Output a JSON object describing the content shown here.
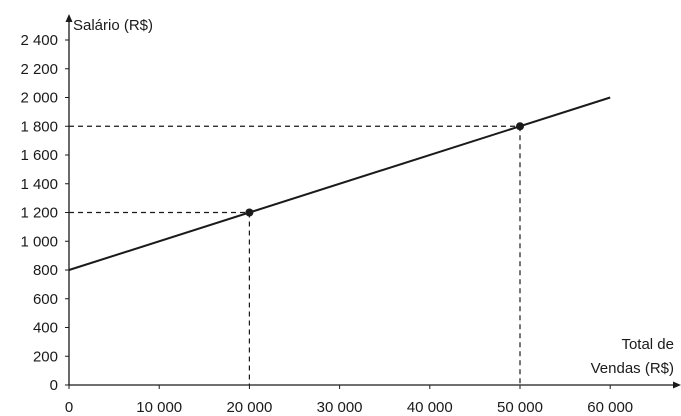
{
  "chart_data": {
    "type": "line",
    "title": "",
    "ylabel": "Salário (R$)",
    "xlabel_lines": [
      "Total de",
      "Vendas (R$)"
    ],
    "xlim": [
      0,
      68000
    ],
    "ylim": [
      0,
      2500
    ],
    "x_ticks": [
      0,
      10000,
      20000,
      30000,
      40000,
      50000,
      60000
    ],
    "x_tick_labels": [
      "0",
      "10 000",
      "20 000",
      "30 000",
      "40 000",
      "50 000",
      "60 000"
    ],
    "y_ticks": [
      0,
      200,
      400,
      600,
      800,
      1000,
      1200,
      1400,
      1600,
      1800,
      2000,
      2200,
      2400
    ],
    "y_tick_labels": [
      "0",
      "200",
      "400",
      "600",
      "800",
      "1 000",
      "1 200",
      "1 400",
      "1 600",
      "1 800",
      "2 000",
      "2 200",
      "2 400"
    ],
    "grid": false,
    "series": [
      {
        "x": [
          0,
          60000
        ],
        "y": [
          800,
          2000
        ]
      }
    ],
    "highlighted_points": [
      {
        "x": 20000,
        "y": 1200
      },
      {
        "x": 50000,
        "y": 1800
      }
    ],
    "colors": {
      "line": "#1a1a1a"
    }
  }
}
